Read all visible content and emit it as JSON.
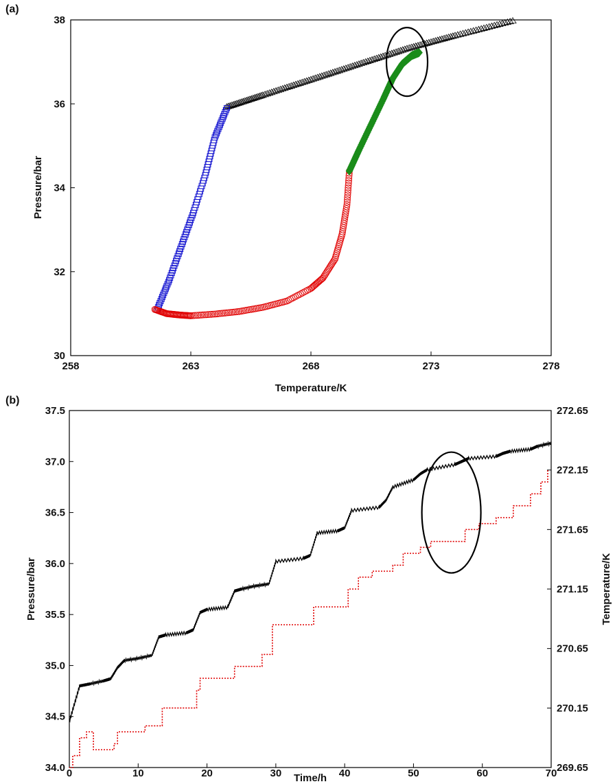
{
  "chart_data": [
    {
      "panel": "(a)",
      "type": "scatter",
      "xlabel": "Temperature/K",
      "ylabel": "Pressure/bar",
      "xlim": [
        258,
        278
      ],
      "ylim": [
        30,
        38
      ],
      "xticks": [
        258,
        263,
        268,
        273,
        278
      ],
      "yticks": [
        30,
        32,
        34,
        36,
        38
      ],
      "grid": false,
      "series": [
        {
          "marker": "triangle",
          "color": "#000000",
          "x": [
            264.5,
            266,
            268,
            270,
            272,
            274,
            276.4
          ],
          "y": [
            35.93,
            36.21,
            36.58,
            36.95,
            37.32,
            37.63,
            37.98
          ]
        },
        {
          "marker": "square",
          "color": "#0000cc",
          "x": [
            261.6,
            262.1,
            262.6,
            263.1,
            263.6,
            264.0,
            264.5
          ],
          "y": [
            31.1,
            31.8,
            32.6,
            33.4,
            34.3,
            35.2,
            35.9
          ]
        },
        {
          "marker": "circle",
          "color": "#e00000",
          "x": [
            261.5,
            262.0,
            262.5,
            263,
            264,
            265,
            266,
            267,
            268,
            268.5,
            269,
            269.3,
            269.5,
            269.6
          ],
          "y": [
            31.1,
            31.0,
            30.97,
            30.95,
            30.99,
            31.05,
            31.15,
            31.3,
            31.6,
            31.85,
            32.3,
            32.9,
            33.6,
            34.4
          ]
        },
        {
          "marker": "diamond",
          "color": "#1a8c1a",
          "x": [
            269.6,
            270.0,
            270.5,
            271.0,
            271.4,
            271.8,
            272.2,
            272.5
          ],
          "y": [
            34.4,
            34.9,
            35.5,
            36.1,
            36.6,
            36.95,
            37.15,
            37.22
          ]
        }
      ],
      "annotations": [
        {
          "shape": "ellipse",
          "x": 272.0,
          "y": 37.0
        }
      ]
    },
    {
      "panel": "(b)",
      "type": "line",
      "xlabel": "Time/h",
      "ylabel": "Pressure/bar",
      "y2label": "Temperature/K",
      "xlim": [
        0,
        70
      ],
      "ylim": [
        34.0,
        37.5
      ],
      "y2lim": [
        269.65,
        272.65
      ],
      "xticks": [
        0,
        10,
        20,
        30,
        40,
        50,
        60,
        70
      ],
      "yticks": [
        "34.0",
        "34.5",
        "35.0",
        "35.5",
        "36.0",
        "36.5",
        "37.0",
        "37.5"
      ],
      "y2ticks": [
        "269.65",
        "270.15",
        "270.65",
        "271.15",
        "271.65",
        "272.15",
        "272.65"
      ],
      "grid": false,
      "series": [
        {
          "axis": "left",
          "color": "#000000",
          "style": "solid",
          "x": [
            0,
            1.5,
            3,
            5,
            6,
            7,
            8,
            10,
            12,
            13,
            14,
            17,
            18,
            19,
            20,
            23,
            24,
            25,
            27,
            29,
            30,
            34,
            35,
            36,
            39,
            40,
            41,
            45,
            46,
            47,
            50,
            51,
            52,
            56,
            57,
            58,
            62,
            63,
            64,
            67,
            68,
            70
          ],
          "y": [
            34.45,
            34.8,
            34.82,
            34.85,
            34.87,
            34.98,
            35.05,
            35.07,
            35.1,
            35.28,
            35.3,
            35.32,
            35.35,
            35.52,
            35.55,
            35.57,
            35.73,
            35.75,
            35.78,
            35.8,
            36.02,
            36.05,
            36.08,
            36.3,
            36.32,
            36.35,
            36.52,
            36.55,
            36.62,
            36.75,
            36.82,
            36.88,
            36.92,
            36.97,
            37.0,
            37.03,
            37.05,
            37.08,
            37.1,
            37.12,
            37.15,
            37.18
          ]
        },
        {
          "axis": "right",
          "color": "#e00000",
          "style": "dotted",
          "x": [
            0,
            0.5,
            1.5,
            2.5,
            3.5,
            5,
            6.5,
            7,
            9,
            11,
            12,
            13.5,
            16,
            18.5,
            19,
            22,
            24,
            25,
            28,
            29.5,
            33,
            35.5,
            38,
            40.5,
            42,
            44,
            47,
            48.5,
            51,
            52.5,
            55,
            57.5,
            59.5,
            62,
            64.5,
            67,
            68.5,
            69.5
          ],
          "y": [
            269.65,
            269.75,
            269.9,
            269.95,
            269.8,
            269.8,
            269.85,
            269.95,
            269.95,
            270.0,
            270.0,
            270.15,
            270.15,
            270.3,
            270.4,
            270.4,
            270.5,
            270.5,
            270.6,
            270.85,
            270.85,
            271.0,
            271.0,
            271.15,
            271.25,
            271.3,
            271.35,
            271.45,
            271.5,
            271.55,
            271.55,
            271.65,
            271.7,
            271.75,
            271.85,
            271.95,
            272.05,
            272.15
          ]
        }
      ],
      "annotations": [
        {
          "shape": "ellipse",
          "x": 55.5,
          "y": 36.5
        }
      ]
    }
  ]
}
